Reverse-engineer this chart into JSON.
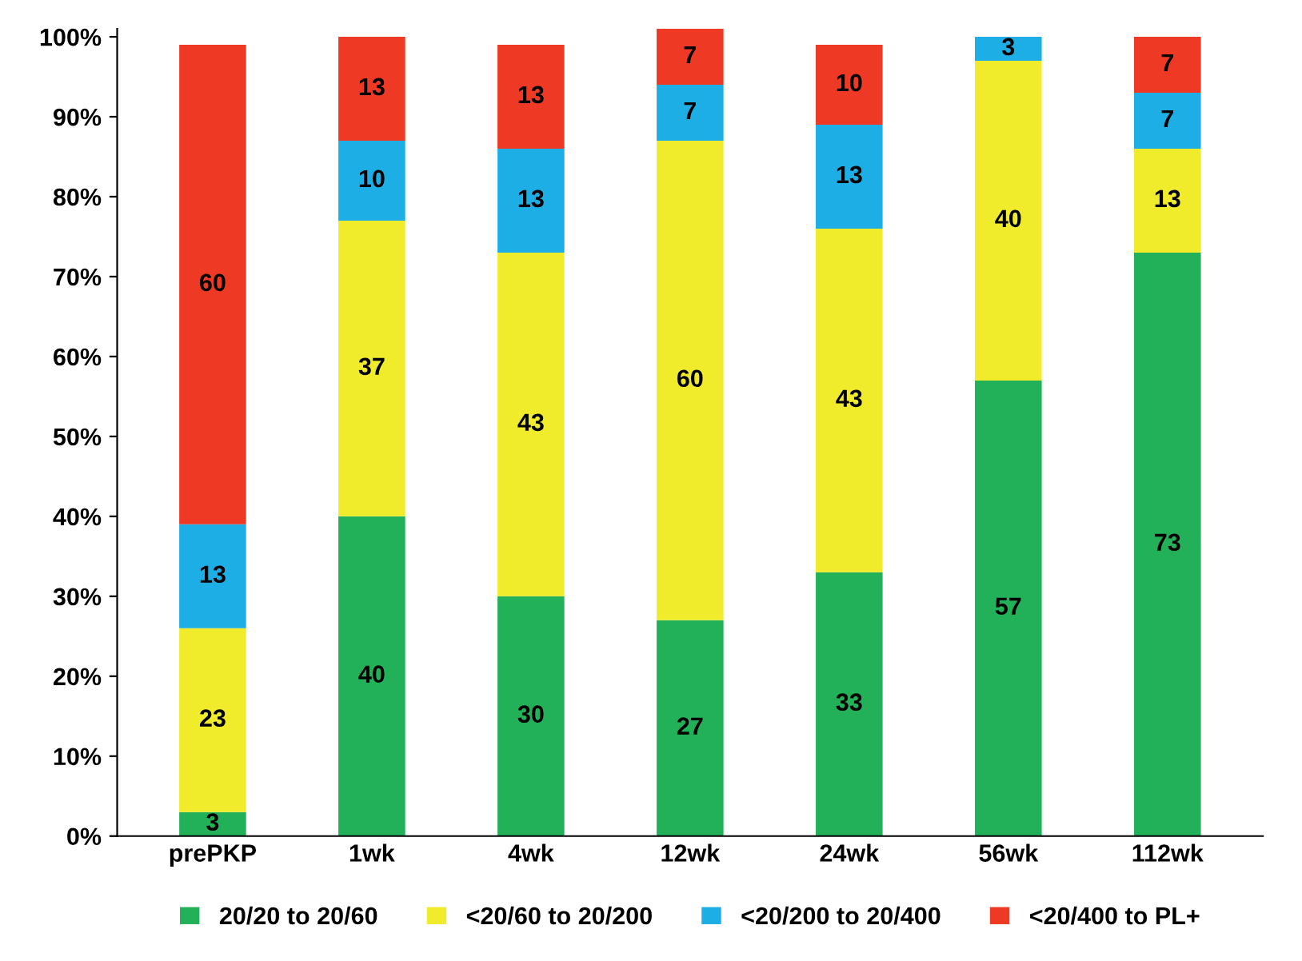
{
  "chart_data": {
    "type": "bar",
    "stacked": true,
    "data_labels": true,
    "legend": "bottom",
    "grid": false,
    "categories": [
      "prePKP",
      "1wk",
      "4wk",
      "12wk",
      "24wk",
      "56wk",
      "112wk"
    ],
    "ylim": [
      0,
      101
    ],
    "yticks": [
      {
        "value": 0,
        "label": "0%"
      },
      {
        "value": 10,
        "label": "10%"
      },
      {
        "value": 20,
        "label": "20%"
      },
      {
        "value": 30,
        "label": "30%"
      },
      {
        "value": 40,
        "label": "40%"
      },
      {
        "value": 50,
        "label": "50%"
      },
      {
        "value": 60,
        "label": "60%"
      },
      {
        "value": 70,
        "label": "70%"
      },
      {
        "value": 80,
        "label": "80%"
      },
      {
        "value": 90,
        "label": "90%"
      },
      {
        "value": 100,
        "label": "100%"
      }
    ],
    "series": [
      {
        "name": "20/20 to 20/60",
        "color": "#22b159",
        "values": [
          3,
          40,
          30,
          27,
          33,
          57,
          73
        ]
      },
      {
        "name": "<20/60 to 20/200",
        "color": "#f0ec2c",
        "values": [
          23,
          37,
          43,
          60,
          43,
          40,
          13
        ]
      },
      {
        "name": "<20/200 to 20/400",
        "color": "#1eaee6",
        "values": [
          13,
          10,
          13,
          7,
          13,
          3,
          7
        ]
      },
      {
        "name": "<20/400 to PL+",
        "color": "#ee3a24",
        "values": [
          60,
          13,
          13,
          7,
          10,
          null,
          7
        ]
      }
    ]
  }
}
